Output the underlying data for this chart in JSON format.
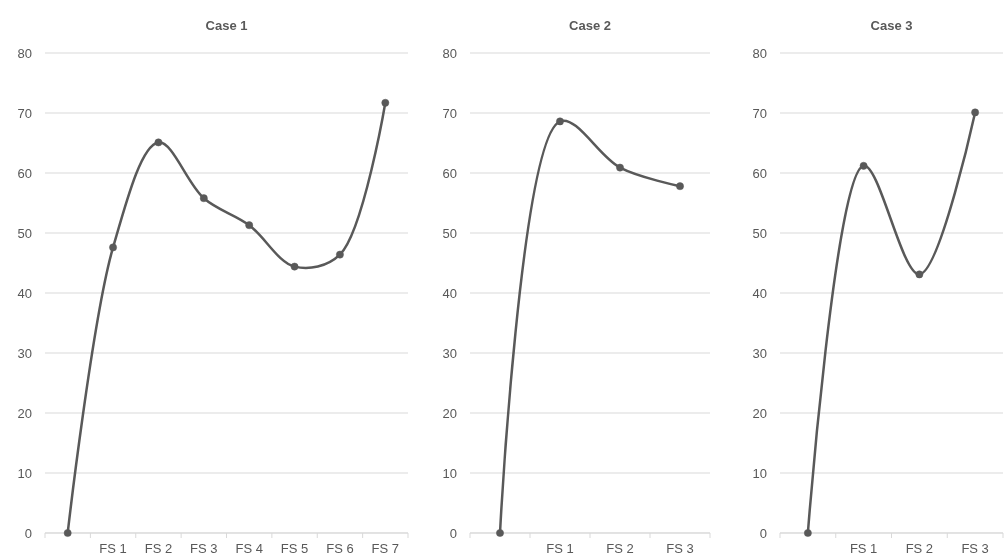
{
  "chart_data": [
    {
      "type": "line",
      "title": "Case 1",
      "categories": [
        null,
        "FS 1",
        "FS 2",
        "FS 3",
        "FS 4",
        "FS 5",
        "FS 6",
        "FS 7"
      ],
      "series": [
        {
          "color": "#595959",
          "values": [
            0,
            47.6,
            65.1,
            55.8,
            51.3,
            44.4,
            46.4,
            71.7
          ]
        }
      ],
      "ylim": [
        0,
        80
      ],
      "yticks": [
        0,
        10,
        20,
        30,
        40,
        50,
        60,
        70,
        80
      ],
      "grid": "y",
      "marker": "circle",
      "line_style": "solid"
    },
    {
      "type": "line",
      "title": "Case 2",
      "categories": [
        null,
        "FS 1",
        "FS 2",
        "FS 3"
      ],
      "series": [
        {
          "color": "#595959",
          "values": [
            0,
            68.6,
            60.9,
            57.8
          ]
        }
      ],
      "ylim": [
        0,
        80
      ],
      "yticks": [
        0,
        10,
        20,
        30,
        40,
        50,
        60,
        70,
        80
      ],
      "grid": "y",
      "marker": "circle",
      "line_style": "solid"
    },
    {
      "type": "line",
      "title": "Case 3",
      "categories": [
        null,
        "FS 1",
        "FS 2",
        "FS 3"
      ],
      "series": [
        {
          "color": "#595959",
          "values": [
            0,
            61.2,
            43.1,
            70.1
          ]
        }
      ],
      "ylim": [
        0,
        80
      ],
      "yticks": [
        0,
        10,
        20,
        30,
        40,
        50,
        60,
        70,
        80
      ],
      "grid": "y",
      "marker": "circle",
      "line_style": "solid"
    }
  ]
}
